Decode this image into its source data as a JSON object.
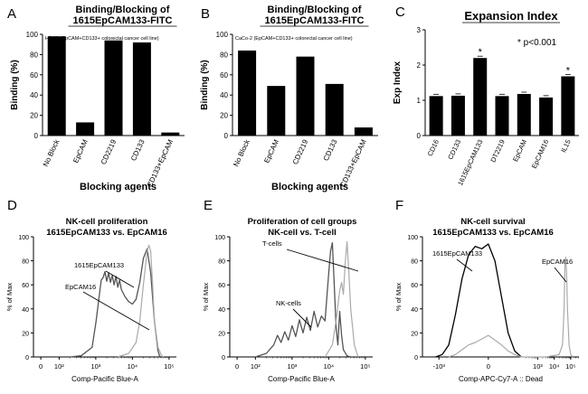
{
  "chart_data": [
    {
      "panel": "A",
      "type": "bar",
      "title": "Binding/Blocking of 1615EpCAM133-FITC",
      "title_lines": [
        "Binding/Blocking of",
        "1615EpCAM133-FITC"
      ],
      "subtitle": "HT-29 (EpCAM+CD133+ colorectal  cancer cell line)",
      "xlabel": "Blocking agents",
      "ylabel": "Binding (%)",
      "ylim": [
        0,
        100
      ],
      "yticks": [
        "0",
        "20",
        "40",
        "60",
        "80",
        "100"
      ],
      "categories": [
        "No Block",
        "EpCAM",
        "CD2219",
        "CD133",
        "CD133+EpCAM"
      ],
      "values": [
        98,
        13,
        94,
        92,
        3
      ]
    },
    {
      "panel": "B",
      "type": "bar",
      "title": "Binding/Blocking of 1615EpCAM133-FITC",
      "title_lines": [
        "Binding/Blocking of",
        "1615EpCAM133-FITC"
      ],
      "subtitle": "CaCo-2 (EpCAM+CD133+ colorectal cancer cell line)",
      "xlabel": "Blocking agents",
      "ylabel": "Binding (%)",
      "ylim": [
        0,
        100
      ],
      "yticks": [
        "0",
        "20",
        "40",
        "60",
        "80",
        "100"
      ],
      "categories": [
        "No Block",
        "EpCAM",
        "CD2219",
        "CD133",
        "CD133+EpCAM"
      ],
      "values": [
        84,
        49,
        78,
        51,
        8
      ]
    },
    {
      "panel": "C",
      "type": "bar",
      "title": "Expansion Index",
      "annotation": "* p<0.001",
      "ylabel": "Exp Index",
      "ylim": [
        0,
        3
      ],
      "yticks": [
        "0",
        "1",
        "2",
        "3"
      ],
      "categories": [
        "CD16",
        "CD133",
        "1615EpCAM133",
        "DT2219",
        "EpCAM",
        "EpCAM16",
        "IL15"
      ],
      "values": [
        1.12,
        1.13,
        2.2,
        1.12,
        1.18,
        1.08,
        1.68
      ],
      "significant": [
        "",
        "",
        "*",
        "",
        "",
        "",
        "*"
      ]
    },
    {
      "panel": "D",
      "type": "line",
      "title": "NK-cell proliferation 1615EpCAM133 vs. EpCAM16",
      "title_lines": [
        "NK-cell proliferation",
        "1615EpCAM133 vs. EpCAM16"
      ],
      "xlabel": "Comp-Pacific Blue-A",
      "ylabel": "% of Max",
      "ylim": [
        0,
        100
      ],
      "yticks": [
        "0",
        "20",
        "40",
        "60",
        "80",
        "100"
      ],
      "xticks": [
        "0",
        "10²",
        "10³",
        "10⁴",
        "10⁵"
      ],
      "annotations": [
        "1615EpCAM133",
        "EpCAM16"
      ],
      "series": [
        {
          "name": "1615EpCAM133",
          "color": "#555555",
          "x": [
            2.3,
            2.6,
            2.9,
            3.0,
            3.1,
            3.15,
            3.2,
            3.25,
            3.3,
            3.35,
            3.4,
            3.45,
            3.5,
            3.55,
            3.6,
            3.65,
            3.7,
            3.8,
            3.9,
            4.0,
            4.1,
            4.2,
            4.3,
            4.4,
            4.5,
            4.6,
            4.7,
            4.75
          ],
          "y": [
            0,
            1,
            8,
            28,
            52,
            64,
            66,
            71,
            63,
            70,
            62,
            68,
            60,
            67,
            58,
            64,
            56,
            50,
            46,
            44,
            48,
            62,
            82,
            90,
            70,
            30,
            5,
            0
          ]
        },
        {
          "name": "EpCAM16",
          "color": "#aaaaaa",
          "x": [
            3.6,
            3.9,
            4.1,
            4.2,
            4.3,
            4.4,
            4.45,
            4.5,
            4.55,
            4.6,
            4.7,
            4.8,
            4.85
          ],
          "y": [
            0,
            3,
            12,
            30,
            60,
            88,
            93,
            88,
            60,
            30,
            8,
            1,
            0
          ]
        }
      ]
    },
    {
      "panel": "E",
      "type": "line",
      "title": "Proliferation of cell groups NK-cell vs. T-cell",
      "title_lines": [
        "Proliferation of cell groups",
        "NK-cell vs. T-cell"
      ],
      "xlabel": "Comp-Pacific Blue-A",
      "ylabel": "% of Max",
      "ylim": [
        0,
        100
      ],
      "yticks": [
        "0",
        "20",
        "40",
        "60",
        "80",
        "100"
      ],
      "xticks": [
        "0",
        "10²",
        "10³",
        "10⁴",
        "10⁵"
      ],
      "annotations": [
        "T-cells",
        "NK-cells"
      ],
      "series": [
        {
          "name": "NK-cells",
          "color": "#555555",
          "x": [
            2.0,
            2.3,
            2.5,
            2.6,
            2.7,
            2.8,
            2.9,
            3.0,
            3.1,
            3.2,
            3.3,
            3.4,
            3.5,
            3.6,
            3.7,
            3.8,
            3.9,
            4.0,
            4.05,
            4.1,
            4.15,
            4.2,
            4.25,
            4.3,
            4.35,
            4.4,
            4.5,
            4.6
          ],
          "y": [
            0,
            3,
            10,
            18,
            12,
            21,
            14,
            26,
            17,
            31,
            20,
            33,
            22,
            38,
            25,
            34,
            30,
            70,
            88,
            95,
            60,
            25,
            10,
            38,
            18,
            6,
            1,
            0
          ]
        },
        {
          "name": "T-cells",
          "color": "#aaaaaa",
          "x": [
            3.9,
            4.1,
            4.2,
            4.3,
            4.35,
            4.4,
            4.45,
            4.5,
            4.55,
            4.6,
            4.7,
            4.8
          ],
          "y": [
            0,
            10,
            30,
            55,
            62,
            52,
            78,
            96,
            70,
            40,
            10,
            0
          ]
        }
      ]
    },
    {
      "panel": "F",
      "type": "line",
      "title": "NK-cell survival 1615EpCAM133 vs. EpCAM16",
      "title_lines": [
        "NK-cell survival",
        "1615EpCAM133 vs. EpCAM16"
      ],
      "xlabel": "Comp-APC-Cy7-A :: Dead",
      "ylabel": "% of Max",
      "ylim": [
        0,
        100
      ],
      "yticks": [
        "0",
        "20",
        "40",
        "60",
        "80",
        "100"
      ],
      "xticks": [
        "-10³",
        "0",
        "10³",
        "10⁴",
        "10⁵"
      ],
      "annotations": [
        "1615EpCAM133",
        "EpCAM16"
      ],
      "series": [
        {
          "name": "1615EpCAM133",
          "color": "#000000",
          "x": [
            -3.2,
            -2.8,
            -2.4,
            -2.0,
            -1.6,
            -1.2,
            -0.8,
            -0.4,
            0.0,
            0.4,
            0.8,
            1.2,
            1.6,
            2.0
          ],
          "y": [
            0,
            2,
            10,
            35,
            65,
            85,
            92,
            90,
            94,
            80,
            50,
            20,
            5,
            0
          ]
        },
        {
          "name": "EpCAM16",
          "color": "#aaaaaa",
          "x": [
            -2.4,
            -2.0,
            -1.6,
            -1.2,
            -0.8,
            -0.4,
            0.0,
            0.4,
            0.8,
            1.2,
            1.6,
            2.0,
            3.5,
            4.3,
            4.5,
            4.6,
            4.65,
            4.7,
            4.75,
            4.8,
            4.9,
            5.0,
            5.1
          ],
          "y": [
            0,
            2,
            6,
            10,
            12,
            15,
            18,
            14,
            10,
            5,
            2,
            0,
            0,
            2,
            10,
            40,
            76,
            83,
            70,
            40,
            10,
            2,
            0
          ]
        }
      ]
    }
  ]
}
